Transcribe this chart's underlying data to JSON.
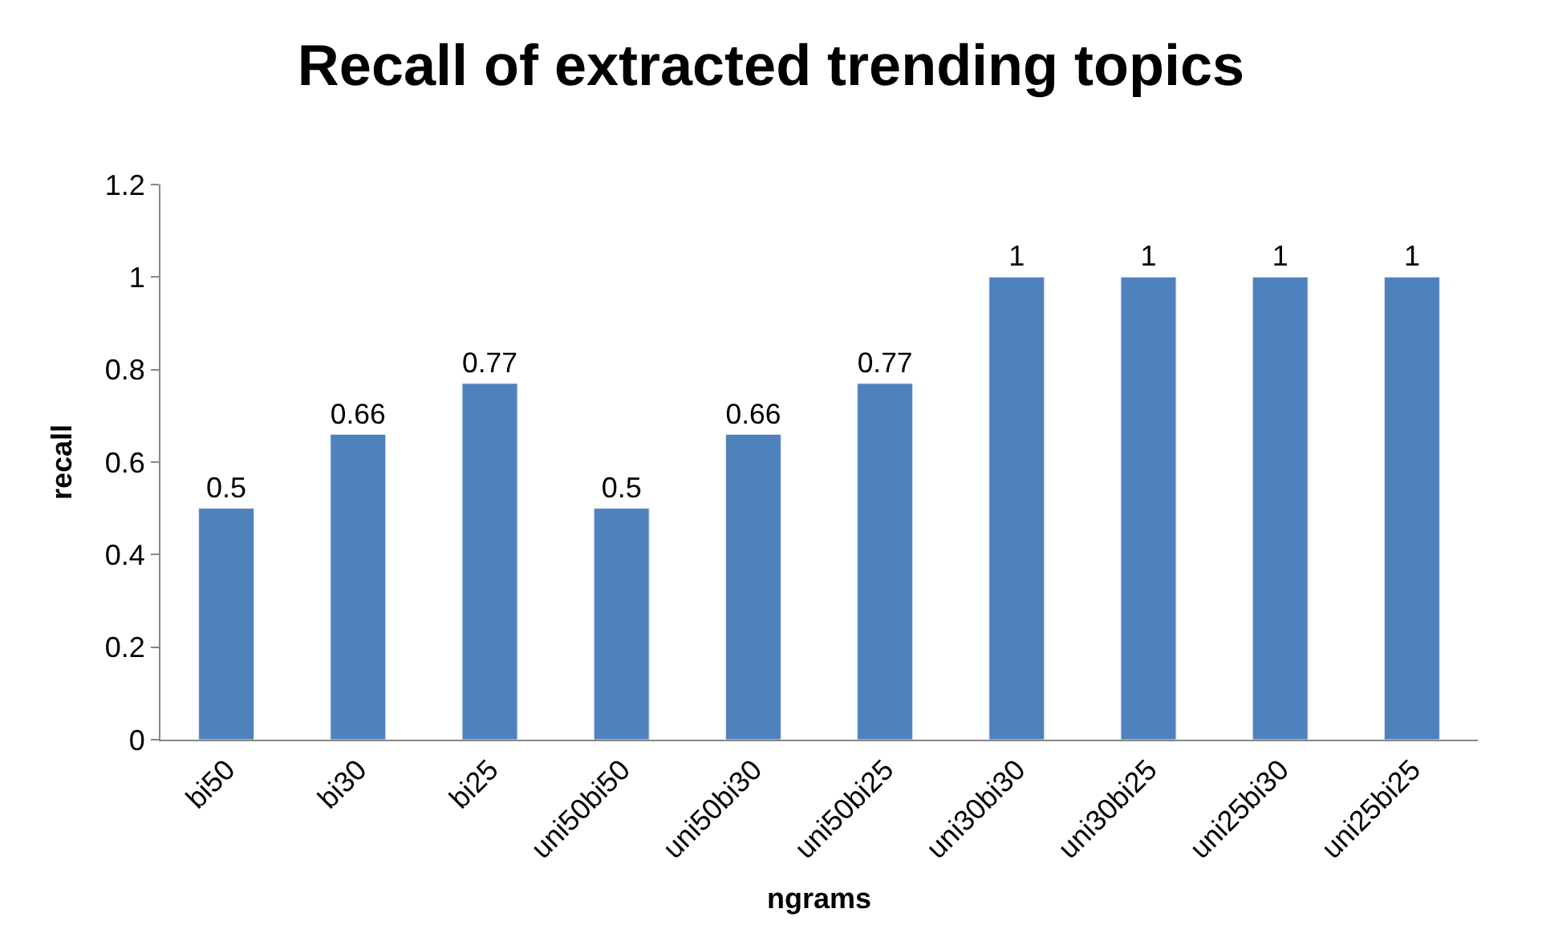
{
  "chart_data": {
    "type": "bar",
    "title": "Recall of extracted trending topics",
    "xlabel": "ngrams",
    "ylabel": "recall",
    "categories": [
      "bi50",
      "bi30",
      "bi25",
      "uni50bi50",
      "uni50bi30",
      "uni50bi25",
      "uni30bi30",
      "uni30bi25",
      "uni25bi30",
      "uni25bi25"
    ],
    "values": [
      0.5,
      0.66,
      0.77,
      0.5,
      0.66,
      0.77,
      1,
      1,
      1,
      1
    ],
    "color": "#4f81bd",
    "ylim": [
      0,
      1.2
    ],
    "yticks": [
      0,
      0.2,
      0.4,
      0.6,
      0.8,
      1,
      1.2
    ],
    "grid": false,
    "data_labels": true
  }
}
